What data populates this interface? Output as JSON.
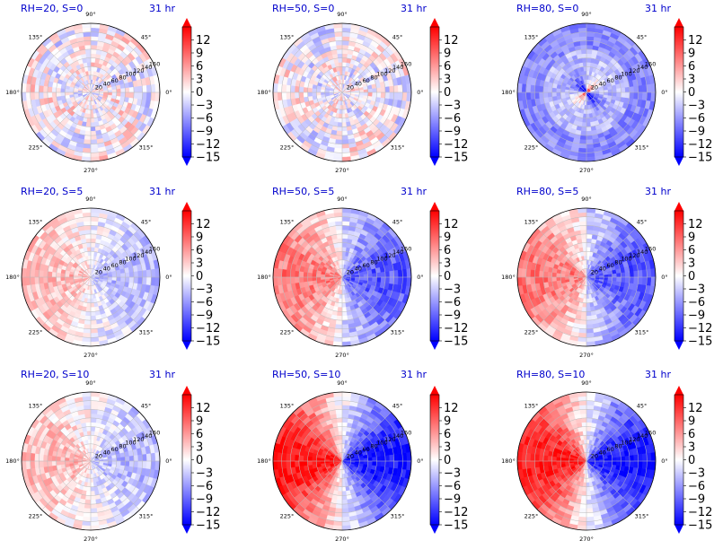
{
  "figure": {
    "panel_time": "31 hr",
    "colorbar_ticks": [
      "12",
      "9",
      "6",
      "3",
      "0",
      "−3",
      "−6",
      "−9",
      "−12",
      "−15"
    ],
    "colorbar_range": [
      -15,
      15
    ],
    "angle_labels": [
      "90°",
      "45°",
      "0°",
      "315°",
      "270°",
      "225°",
      "180°",
      "135°"
    ],
    "radial_labels": [
      "20",
      "40",
      "60",
      "80",
      "100",
      "120",
      "140",
      "160"
    ],
    "colors": {
      "title": "#0000cc",
      "positive": "#ff0000",
      "negative": "#0000ff",
      "neutral": "#ffffff"
    }
  },
  "chart_data": [
    {
      "type": "heatmap",
      "title": "RH=20, S=0",
      "time": "31 hr",
      "radial_max": 160,
      "colormap": "bwr",
      "vmin": -15,
      "vmax": 15,
      "pattern": "weak-noisy"
    },
    {
      "type": "heatmap",
      "title": "RH=50, S=0",
      "time": "31 hr",
      "radial_max": 160,
      "colormap": "bwr",
      "vmin": -15,
      "vmax": 15,
      "pattern": "weak-noisy"
    },
    {
      "type": "heatmap",
      "title": "RH=80, S=0",
      "time": "31 hr",
      "radial_max": 160,
      "colormap": "bwr",
      "vmin": -15,
      "vmax": 15,
      "pattern": "core-dipole"
    },
    {
      "type": "heatmap",
      "title": "RH=20, S=5",
      "time": "31 hr",
      "radial_max": 160,
      "colormap": "bwr",
      "vmin": -15,
      "vmax": 15,
      "pattern": "weak-dipole"
    },
    {
      "type": "heatmap",
      "title": "RH=50, S=5",
      "time": "31 hr",
      "radial_max": 160,
      "colormap": "bwr",
      "vmin": -15,
      "vmax": 15,
      "pattern": "moderate-dipole"
    },
    {
      "type": "heatmap",
      "title": "RH=80, S=5",
      "time": "31 hr",
      "radial_max": 160,
      "colormap": "bwr",
      "vmin": -15,
      "vmax": 15,
      "pattern": "moderate-dipole"
    },
    {
      "type": "heatmap",
      "title": "RH=20, S=10",
      "time": "31 hr",
      "radial_max": 160,
      "colormap": "bwr",
      "vmin": -15,
      "vmax": 15,
      "pattern": "weak-dipole"
    },
    {
      "type": "heatmap",
      "title": "RH=50, S=10",
      "time": "31 hr",
      "radial_max": 160,
      "colormap": "bwr",
      "vmin": -15,
      "vmax": 15,
      "pattern": "strong-dipole"
    },
    {
      "type": "heatmap",
      "title": "RH=80, S=10",
      "time": "31 hr",
      "radial_max": 160,
      "colormap": "bwr",
      "vmin": -15,
      "vmax": 15,
      "pattern": "strong-dipole"
    }
  ]
}
